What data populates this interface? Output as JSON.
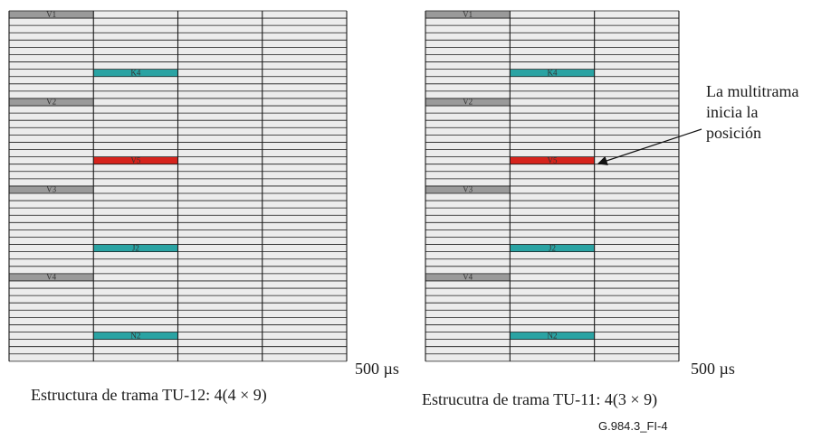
{
  "colors": {
    "slot": "#ececec",
    "grid_line": "#1a1a1a",
    "v_slot": "#9a9a9a",
    "overhead_slot": "#2aa3a3",
    "v5_slot": "#d6231c",
    "slot_text": "#333333"
  },
  "frames": [
    {
      "id": "tu12",
      "caption": "Estructura de trama TU-12: 4(4 × 9)",
      "duration": "500 µs",
      "rows": 36,
      "columns": 4,
      "labels": [
        {
          "text": "V1",
          "row": 0,
          "col": 0,
          "kind": "v"
        },
        {
          "text": "K4",
          "row": 8,
          "col": 1,
          "kind": "overhead"
        },
        {
          "text": "V2",
          "row": 12,
          "col": 0,
          "kind": "v"
        },
        {
          "text": "V5",
          "row": 20,
          "col": 1,
          "kind": "v5"
        },
        {
          "text": "V3",
          "row": 24,
          "col": 0,
          "kind": "v"
        },
        {
          "text": "J2",
          "row": 32,
          "col": 1,
          "kind": "overhead"
        },
        {
          "text": "V4",
          "row": 36,
          "col": 0,
          "kind": "v"
        },
        {
          "text": "N2",
          "row": 44,
          "col": 1,
          "kind": "overhead"
        }
      ]
    },
    {
      "id": "tu11",
      "caption": "Estrucutra de trama TU-11: 4(3 × 9)",
      "duration": "500 µs",
      "rows": 36,
      "columns": 3,
      "labels": [
        {
          "text": "V1",
          "row": 0,
          "col": 0,
          "kind": "v"
        },
        {
          "text": "K4",
          "row": 8,
          "col": 1,
          "kind": "overhead"
        },
        {
          "text": "V2",
          "row": 12,
          "col": 0,
          "kind": "v"
        },
        {
          "text": "V5",
          "row": 20,
          "col": 1,
          "kind": "v5"
        },
        {
          "text": "V3",
          "row": 24,
          "col": 0,
          "kind": "v"
        },
        {
          "text": "J2",
          "row": 32,
          "col": 1,
          "kind": "overhead"
        },
        {
          "text": "V4",
          "row": 36,
          "col": 0,
          "kind": "v"
        },
        {
          "text": "N2",
          "row": 44,
          "col": 1,
          "kind": "overhead"
        }
      ]
    }
  ],
  "annotation": {
    "lines": [
      "La multitrama",
      "inicia la",
      "posición"
    ]
  },
  "figure_id": "G.984.3_FI-4"
}
